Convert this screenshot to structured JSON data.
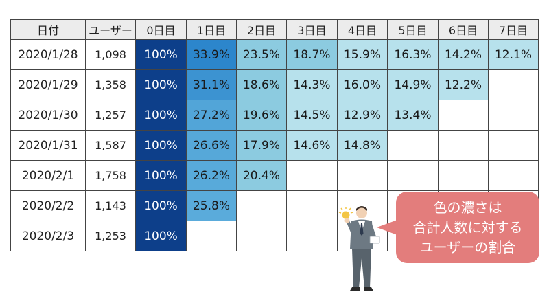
{
  "chart_data": {
    "type": "table",
    "columns": [
      "日付",
      "ユーザー",
      "0日目",
      "1日目",
      "2日目",
      "3日目",
      "4日目",
      "5日目",
      "6日目",
      "7日目"
    ],
    "rows": [
      {
        "date": "2020/1/28",
        "users": "1,098",
        "values": [
          "100%",
          "33.9%",
          "23.5%",
          "18.7%",
          "15.9%",
          "16.3%",
          "14.2%",
          "12.1%"
        ]
      },
      {
        "date": "2020/1/29",
        "users": "1,358",
        "values": [
          "100%",
          "31.1%",
          "18.6%",
          "14.3%",
          "16.0%",
          "14.9%",
          "12.2%"
        ]
      },
      {
        "date": "2020/1/30",
        "users": "1,257",
        "values": [
          "100%",
          "27.2%",
          "19.6%",
          "14.5%",
          "12.9%",
          "13.4%"
        ]
      },
      {
        "date": "2020/1/31",
        "users": "1,587",
        "values": [
          "100%",
          "26.6%",
          "17.9%",
          "14.6%",
          "14.8%"
        ]
      },
      {
        "date": "2020/2/1",
        "users": "1,758",
        "values": [
          "100%",
          "26.2%",
          "20.4%"
        ]
      },
      {
        "date": "2020/2/2",
        "users": "1,143",
        "values": [
          "100%",
          "25.8%"
        ]
      },
      {
        "date": "2020/2/3",
        "users": "1,253",
        "values": [
          "100%"
        ]
      }
    ],
    "colors": {
      "day0": "#0d3f8a",
      "high": "#2b86cc",
      "mid": "#8ccbe0",
      "low": "#b7e1ec",
      "header_bg": "#ececec",
      "callout": "#e37d7c"
    }
  },
  "callout": {
    "lines": [
      "色の濃さは",
      "合計人数に対する",
      "ユーザーの割合"
    ]
  }
}
